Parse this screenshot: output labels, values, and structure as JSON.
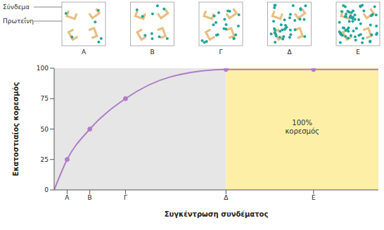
{
  "chart_data": {
    "type": "line",
    "x": [
      0,
      4,
      11,
      22,
      36,
      53,
      80,
      100
    ],
    "values": [
      0,
      25,
      50,
      75,
      93,
      99,
      99,
      99
    ],
    "xlim": [
      0,
      100
    ],
    "ylim": [
      0,
      100
    ],
    "xticks": [
      {
        "value": 4,
        "label": "Α"
      },
      {
        "value": 11,
        "label": "Β"
      },
      {
        "value": 22,
        "label": "Γ"
      },
      {
        "value": 53,
        "label": "Δ"
      },
      {
        "value": 80,
        "label": "Ε"
      }
    ],
    "yticks": [
      0,
      25,
      50,
      75,
      100
    ],
    "xlabel": "Συγκέντρωση συνδέματος",
    "ylabel": "Εκατοστιαίος κορεσμός",
    "color": "#b07cc6",
    "marker": "circle",
    "grid": false,
    "regions": [
      {
        "from": 0,
        "to": 53,
        "color": "#e6e6e6"
      },
      {
        "from": 53,
        "to": 100,
        "color": "#fdf0a6",
        "label": "100% κορεσμός"
      }
    ]
  },
  "diagram": {
    "labels": {
      "ligand": "Σύνδεμα",
      "protein": "Πρωτεΐνη"
    },
    "ligand_color": "#1fa59a",
    "protein_color": "#e6c084",
    "panels": [
      {
        "label": "Α",
        "ligands": 6,
        "proteins": 4
      },
      {
        "label": "Β",
        "ligands": 10,
        "proteins": 4
      },
      {
        "label": "Γ",
        "ligands": 20,
        "proteins": 4
      },
      {
        "label": "Δ",
        "ligands": 36,
        "proteins": 4
      },
      {
        "label": "Ε",
        "ligands": 60,
        "proteins": 4
      }
    ]
  }
}
